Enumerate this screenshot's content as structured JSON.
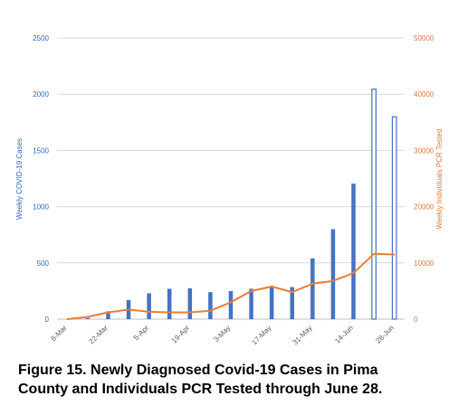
{
  "chart_data": {
    "type": "bar",
    "categories": [
      "8-Mar",
      "15-Mar",
      "22-Mar",
      "29-Mar",
      "5-Apr",
      "12-Apr",
      "19-Apr",
      "26-Apr",
      "3-May",
      "10-May",
      "17-May",
      "24-May",
      "31-May",
      "7-Jun",
      "14-Jun",
      "21-Jun",
      "28-Jun"
    ],
    "x_tick_labels": [
      "8-Mar",
      "22-Mar",
      "5-Apr",
      "19-Apr",
      "3-May",
      "17-May",
      "31-May",
      "14-Jun",
      "28-Jun"
    ],
    "series": [
      {
        "name": "Weekly COVID-19 Cases",
        "type": "bar",
        "axis": "left",
        "values": [
          0,
          10,
          70,
          170,
          230,
          270,
          275,
          240,
          250,
          270,
          290,
          285,
          540,
          800,
          1205,
          2045,
          1800
        ],
        "outlined_bars": [
          15,
          16
        ],
        "color": "#4472c4"
      },
      {
        "name": "Weekly Individuals PCR Tested",
        "type": "line",
        "axis": "right",
        "values": [
          0,
          400,
          1200,
          1700,
          1300,
          1200,
          1200,
          1500,
          3000,
          5000,
          5800,
          4800,
          6300,
          6800,
          8200,
          11600,
          11500
        ],
        "color": "#ed7d31"
      }
    ],
    "ylabel": "Weekly COVID-19 Cases",
    "ylabel_right": "Weekly Individuals PCR Tested",
    "ylim": [
      0,
      2500
    ],
    "ylim_right": [
      0,
      50000
    ],
    "yticks": [
      "0",
      "500",
      "1000",
      "1500",
      "2000",
      "2500"
    ],
    "yticks_right": [
      "0",
      "10000",
      "20000",
      "30000",
      "40000",
      "50000"
    ],
    "grid": true,
    "title": ""
  },
  "caption": {
    "line1": "Figure 15. Newly Diagnosed Covid-19 Cases in Pima",
    "line2": "County and Individuals PCR Tested through June 28."
  },
  "colors": {
    "bar": "#4472c4",
    "line": "#ed7d31",
    "grid": "#d9d9d9"
  }
}
